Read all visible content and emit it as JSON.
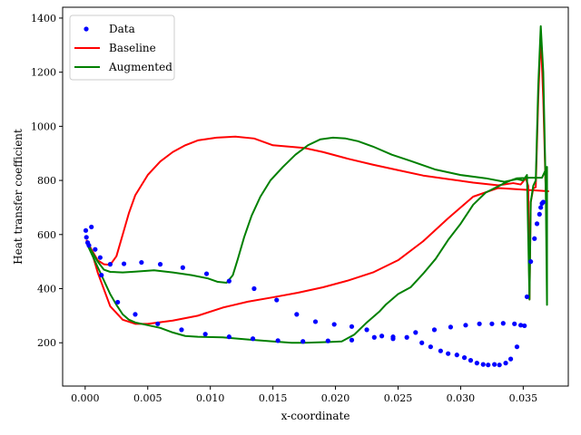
{
  "chart_data": {
    "type": "line",
    "title": "",
    "xlabel": "x-coordinate",
    "ylabel": "Heat transfer coefficient",
    "xlim": [
      -0.0018,
      0.0386
    ],
    "ylim": [
      40,
      1440
    ],
    "xticks": [
      0.0,
      0.005,
      0.01,
      0.015,
      0.02,
      0.025,
      0.03,
      0.035
    ],
    "xtick_labels": [
      "0.000",
      "0.005",
      "0.010",
      "0.015",
      "0.020",
      "0.025",
      "0.030",
      "0.035"
    ],
    "yticks": [
      200,
      400,
      600,
      800,
      1000,
      1200,
      1400
    ],
    "ytick_labels": [
      "200",
      "400",
      "600",
      "800",
      "1000",
      "1200",
      "1400"
    ],
    "grid": false,
    "legend_position": "top-left",
    "series": [
      {
        "name": "Data",
        "style": "scatter",
        "color": "#0000ff",
        "points": [
          [
            5e-05,
            615
          ],
          [
            0.0001,
            590
          ],
          [
            0.0002,
            570
          ],
          [
            0.0003,
            560
          ],
          [
            0.0005,
            628
          ],
          [
            0.0008,
            545
          ],
          [
            0.0012,
            515
          ],
          [
            0.0013,
            450
          ],
          [
            0.002,
            490
          ],
          [
            0.0026,
            350
          ],
          [
            0.0031,
            492
          ],
          [
            0.004,
            305
          ],
          [
            0.0045,
            497
          ],
          [
            0.0058,
            270
          ],
          [
            0.006,
            490
          ],
          [
            0.0077,
            248
          ],
          [
            0.0078,
            478
          ],
          [
            0.0096,
            232
          ],
          [
            0.0097,
            455
          ],
          [
            0.0115,
            222
          ],
          [
            0.0115,
            428
          ],
          [
            0.0134,
            215
          ],
          [
            0.0135,
            400
          ],
          [
            0.0154,
            208
          ],
          [
            0.0153,
            358
          ],
          [
            0.0174,
            205
          ],
          [
            0.0169,
            305
          ],
          [
            0.0194,
            207
          ],
          [
            0.0184,
            278
          ],
          [
            0.0213,
            210
          ],
          [
            0.0199,
            268
          ],
          [
            0.0213,
            260
          ],
          [
            0.0225,
            248
          ],
          [
            0.0231,
            220
          ],
          [
            0.0237,
            225
          ],
          [
            0.0246,
            215
          ],
          [
            0.0246,
            222
          ],
          [
            0.0257,
            220
          ],
          [
            0.0264,
            238
          ],
          [
            0.0269,
            200
          ],
          [
            0.0276,
            185
          ],
          [
            0.0279,
            248
          ],
          [
            0.0284,
            170
          ],
          [
            0.029,
            160
          ],
          [
            0.0292,
            258
          ],
          [
            0.0297,
            155
          ],
          [
            0.0303,
            145
          ],
          [
            0.0304,
            265
          ],
          [
            0.0308,
            135
          ],
          [
            0.0313,
            125
          ],
          [
            0.0315,
            270
          ],
          [
            0.0318,
            120
          ],
          [
            0.0322,
            118
          ],
          [
            0.0325,
            270
          ],
          [
            0.0327,
            120
          ],
          [
            0.0331,
            118
          ],
          [
            0.0334,
            272
          ],
          [
            0.0336,
            125
          ],
          [
            0.034,
            140
          ],
          [
            0.0343,
            270
          ],
          [
            0.0345,
            185
          ],
          [
            0.0348,
            265
          ],
          [
            0.0351,
            263
          ],
          [
            0.0353,
            370
          ],
          [
            0.0356,
            500
          ],
          [
            0.0359,
            585
          ],
          [
            0.0361,
            640
          ],
          [
            0.0363,
            675
          ],
          [
            0.0364,
            700
          ],
          [
            0.0365,
            715
          ],
          [
            0.0366,
            720
          ]
        ]
      },
      {
        "name": "Baseline",
        "style": "line",
        "color": "#ff0000",
        "points": [
          [
            0.0001,
            580
          ],
          [
            0.0005,
            545
          ],
          [
            0.001,
            505
          ],
          [
            0.0015,
            490
          ],
          [
            0.002,
            488
          ],
          [
            0.0025,
            520
          ],
          [
            0.003,
            600
          ],
          [
            0.0035,
            680
          ],
          [
            0.004,
            745
          ],
          [
            0.005,
            820
          ],
          [
            0.006,
            870
          ],
          [
            0.007,
            905
          ],
          [
            0.008,
            930
          ],
          [
            0.009,
            948
          ],
          [
            0.0105,
            958
          ],
          [
            0.012,
            962
          ],
          [
            0.0135,
            955
          ],
          [
            0.015,
            930
          ],
          [
            0.0175,
            920
          ],
          [
            0.019,
            905
          ],
          [
            0.021,
            880
          ],
          [
            0.023,
            858
          ],
          [
            0.025,
            838
          ],
          [
            0.027,
            818
          ],
          [
            0.029,
            805
          ],
          [
            0.031,
            792
          ],
          [
            0.033,
            782
          ],
          [
            0.0342,
            790
          ],
          [
            0.0348,
            785
          ],
          [
            0.0352,
            808
          ],
          [
            0.0354,
            780
          ],
          [
            0.0355,
            360
          ],
          [
            0.0356,
            720
          ],
          [
            0.0358,
            770
          ],
          [
            0.036,
            775
          ],
          [
            0.0362,
            1100
          ],
          [
            0.0364,
            1340
          ],
          [
            0.0366,
            1100
          ],
          [
            0.0368,
            760
          ],
          [
            0.037,
            760
          ],
          [
            0.033,
            772
          ],
          [
            0.031,
            740
          ],
          [
            0.029,
            660
          ],
          [
            0.027,
            575
          ],
          [
            0.025,
            505
          ],
          [
            0.023,
            460
          ],
          [
            0.021,
            430
          ],
          [
            0.019,
            405
          ],
          [
            0.017,
            385
          ],
          [
            0.015,
            368
          ],
          [
            0.013,
            352
          ],
          [
            0.011,
            330
          ],
          [
            0.009,
            300
          ],
          [
            0.007,
            282
          ],
          [
            0.005,
            270
          ],
          [
            0.004,
            270
          ],
          [
            0.003,
            285
          ],
          [
            0.002,
            335
          ],
          [
            0.001,
            460
          ],
          [
            0.0005,
            540
          ],
          [
            0.0001,
            580
          ]
        ]
      },
      {
        "name": "Augmented",
        "style": "line",
        "color": "#008000",
        "points": [
          [
            0.0001,
            575
          ],
          [
            0.0005,
            540
          ],
          [
            0.001,
            500
          ],
          [
            0.0015,
            470
          ],
          [
            0.002,
            462
          ],
          [
            0.003,
            460
          ],
          [
            0.004,
            463
          ],
          [
            0.0055,
            468
          ],
          [
            0.007,
            460
          ],
          [
            0.0085,
            450
          ],
          [
            0.0098,
            438
          ],
          [
            0.0106,
            425
          ],
          [
            0.0113,
            422
          ],
          [
            0.0118,
            450
          ],
          [
            0.0122,
            510
          ],
          [
            0.0127,
            590
          ],
          [
            0.0133,
            670
          ],
          [
            0.014,
            740
          ],
          [
            0.0148,
            800
          ],
          [
            0.0158,
            850
          ],
          [
            0.0168,
            895
          ],
          [
            0.0178,
            930
          ],
          [
            0.0188,
            952
          ],
          [
            0.0198,
            958
          ],
          [
            0.0208,
            955
          ],
          [
            0.0218,
            945
          ],
          [
            0.023,
            925
          ],
          [
            0.0245,
            895
          ],
          [
            0.026,
            872
          ],
          [
            0.028,
            840
          ],
          [
            0.03,
            820
          ],
          [
            0.032,
            808
          ],
          [
            0.0335,
            795
          ],
          [
            0.0345,
            805
          ],
          [
            0.035,
            800
          ],
          [
            0.0353,
            820
          ],
          [
            0.0355,
            360
          ],
          [
            0.0356,
            720
          ],
          [
            0.0358,
            780
          ],
          [
            0.036,
            800
          ],
          [
            0.0362,
            1150
          ],
          [
            0.0364,
            1370
          ],
          [
            0.0366,
            1200
          ],
          [
            0.0368,
            760
          ],
          [
            0.0369,
            340
          ],
          [
            0.0369,
            850
          ],
          [
            0.0365,
            810
          ],
          [
            0.036,
            810
          ],
          [
            0.0355,
            810
          ],
          [
            0.0345,
            808
          ],
          [
            0.034,
            800
          ],
          [
            0.0335,
            790
          ],
          [
            0.033,
            778
          ],
          [
            0.032,
            755
          ],
          [
            0.031,
            710
          ],
          [
            0.03,
            640
          ],
          [
            0.029,
            580
          ],
          [
            0.028,
            510
          ],
          [
            0.027,
            455
          ],
          [
            0.026,
            405
          ],
          [
            0.025,
            380
          ],
          [
            0.024,
            340
          ],
          [
            0.0235,
            315
          ],
          [
            0.0225,
            275
          ],
          [
            0.0215,
            230
          ],
          [
            0.0205,
            205
          ],
          [
            0.0195,
            203
          ],
          [
            0.0175,
            200
          ],
          [
            0.0165,
            200
          ],
          [
            0.015,
            205
          ],
          [
            0.013,
            212
          ],
          [
            0.011,
            220
          ],
          [
            0.009,
            222
          ],
          [
            0.008,
            225
          ],
          [
            0.007,
            238
          ],
          [
            0.006,
            255
          ],
          [
            0.005,
            265
          ],
          [
            0.004,
            275
          ],
          [
            0.0035,
            285
          ],
          [
            0.003,
            305
          ],
          [
            0.0025,
            340
          ],
          [
            0.002,
            380
          ],
          [
            0.0015,
            430
          ],
          [
            0.001,
            480
          ],
          [
            0.0005,
            530
          ],
          [
            0.0001,
            570
          ]
        ]
      }
    ]
  }
}
